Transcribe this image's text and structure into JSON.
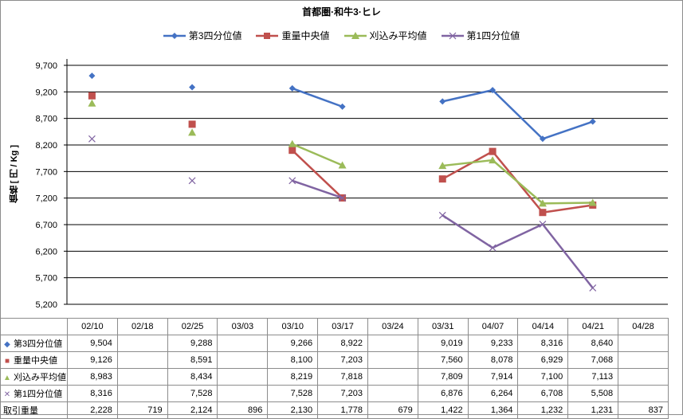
{
  "chart_data": {
    "type": "line",
    "title": "首都圏·和牛3·ヒレ",
    "ylabel": "価格 [ 円 / Kg ]",
    "ylim": [
      5200,
      9700
    ],
    "yticks": [
      "5,200",
      "5,700",
      "6,200",
      "6,700",
      "7,200",
      "7,700",
      "8,200",
      "8,700",
      "9,200",
      "9,700"
    ],
    "ytick_values": [
      5200,
      5700,
      6200,
      6700,
      7200,
      7700,
      8200,
      8700,
      9200,
      9700
    ],
    "categories": [
      "02/10",
      "02/18",
      "02/25",
      "03/03",
      "03/10",
      "03/17",
      "03/24",
      "03/31",
      "04/07",
      "04/14",
      "04/21",
      "04/28"
    ],
    "legend_position": "top",
    "grid": true,
    "series": [
      {
        "name": "第3四分位値",
        "marker": "diamond",
        "color": "#4472C4",
        "values": [
          9504,
          null,
          9288,
          null,
          9266,
          8922,
          null,
          9019,
          9233,
          8316,
          8640,
          null
        ],
        "labels": [
          "9,504",
          "",
          "9,288",
          "",
          "9,266",
          "8,922",
          "",
          "9,019",
          "9,233",
          "8,316",
          "8,640",
          ""
        ]
      },
      {
        "name": "重量中央値",
        "marker": "square",
        "color": "#C0504D",
        "values": [
          9126,
          null,
          8591,
          null,
          8100,
          7203,
          null,
          7560,
          8078,
          6929,
          7068,
          null
        ],
        "labels": [
          "9,126",
          "",
          "8,591",
          "",
          "8,100",
          "7,203",
          "",
          "7,560",
          "8,078",
          "6,929",
          "7,068",
          ""
        ]
      },
      {
        "name": "刈込み平均値",
        "marker": "triangle",
        "color": "#9BBB59",
        "values": [
          8983,
          null,
          8434,
          null,
          8219,
          7818,
          null,
          7809,
          7914,
          7100,
          7113,
          null
        ],
        "labels": [
          "8,983",
          "",
          "8,434",
          "",
          "8,219",
          "7,818",
          "",
          "7,809",
          "7,914",
          "7,100",
          "7,113",
          ""
        ]
      },
      {
        "name": "第1四分位値",
        "marker": "x",
        "color": "#8064A2",
        "values": [
          8316,
          null,
          7528,
          null,
          7528,
          7203,
          null,
          6876,
          6264,
          6708,
          5508,
          null
        ],
        "labels": [
          "8,316",
          "",
          "7,528",
          "",
          "7,528",
          "7,203",
          "",
          "6,876",
          "6,264",
          "6,708",
          "5,508",
          ""
        ]
      }
    ],
    "volume": {
      "name": "取引重量",
      "labels": [
        "2,228",
        "719",
        "2,124",
        "896",
        "2,130",
        "1,778",
        "679",
        "1,422",
        "1,364",
        "1,232",
        "1,231",
        "837"
      ]
    }
  }
}
